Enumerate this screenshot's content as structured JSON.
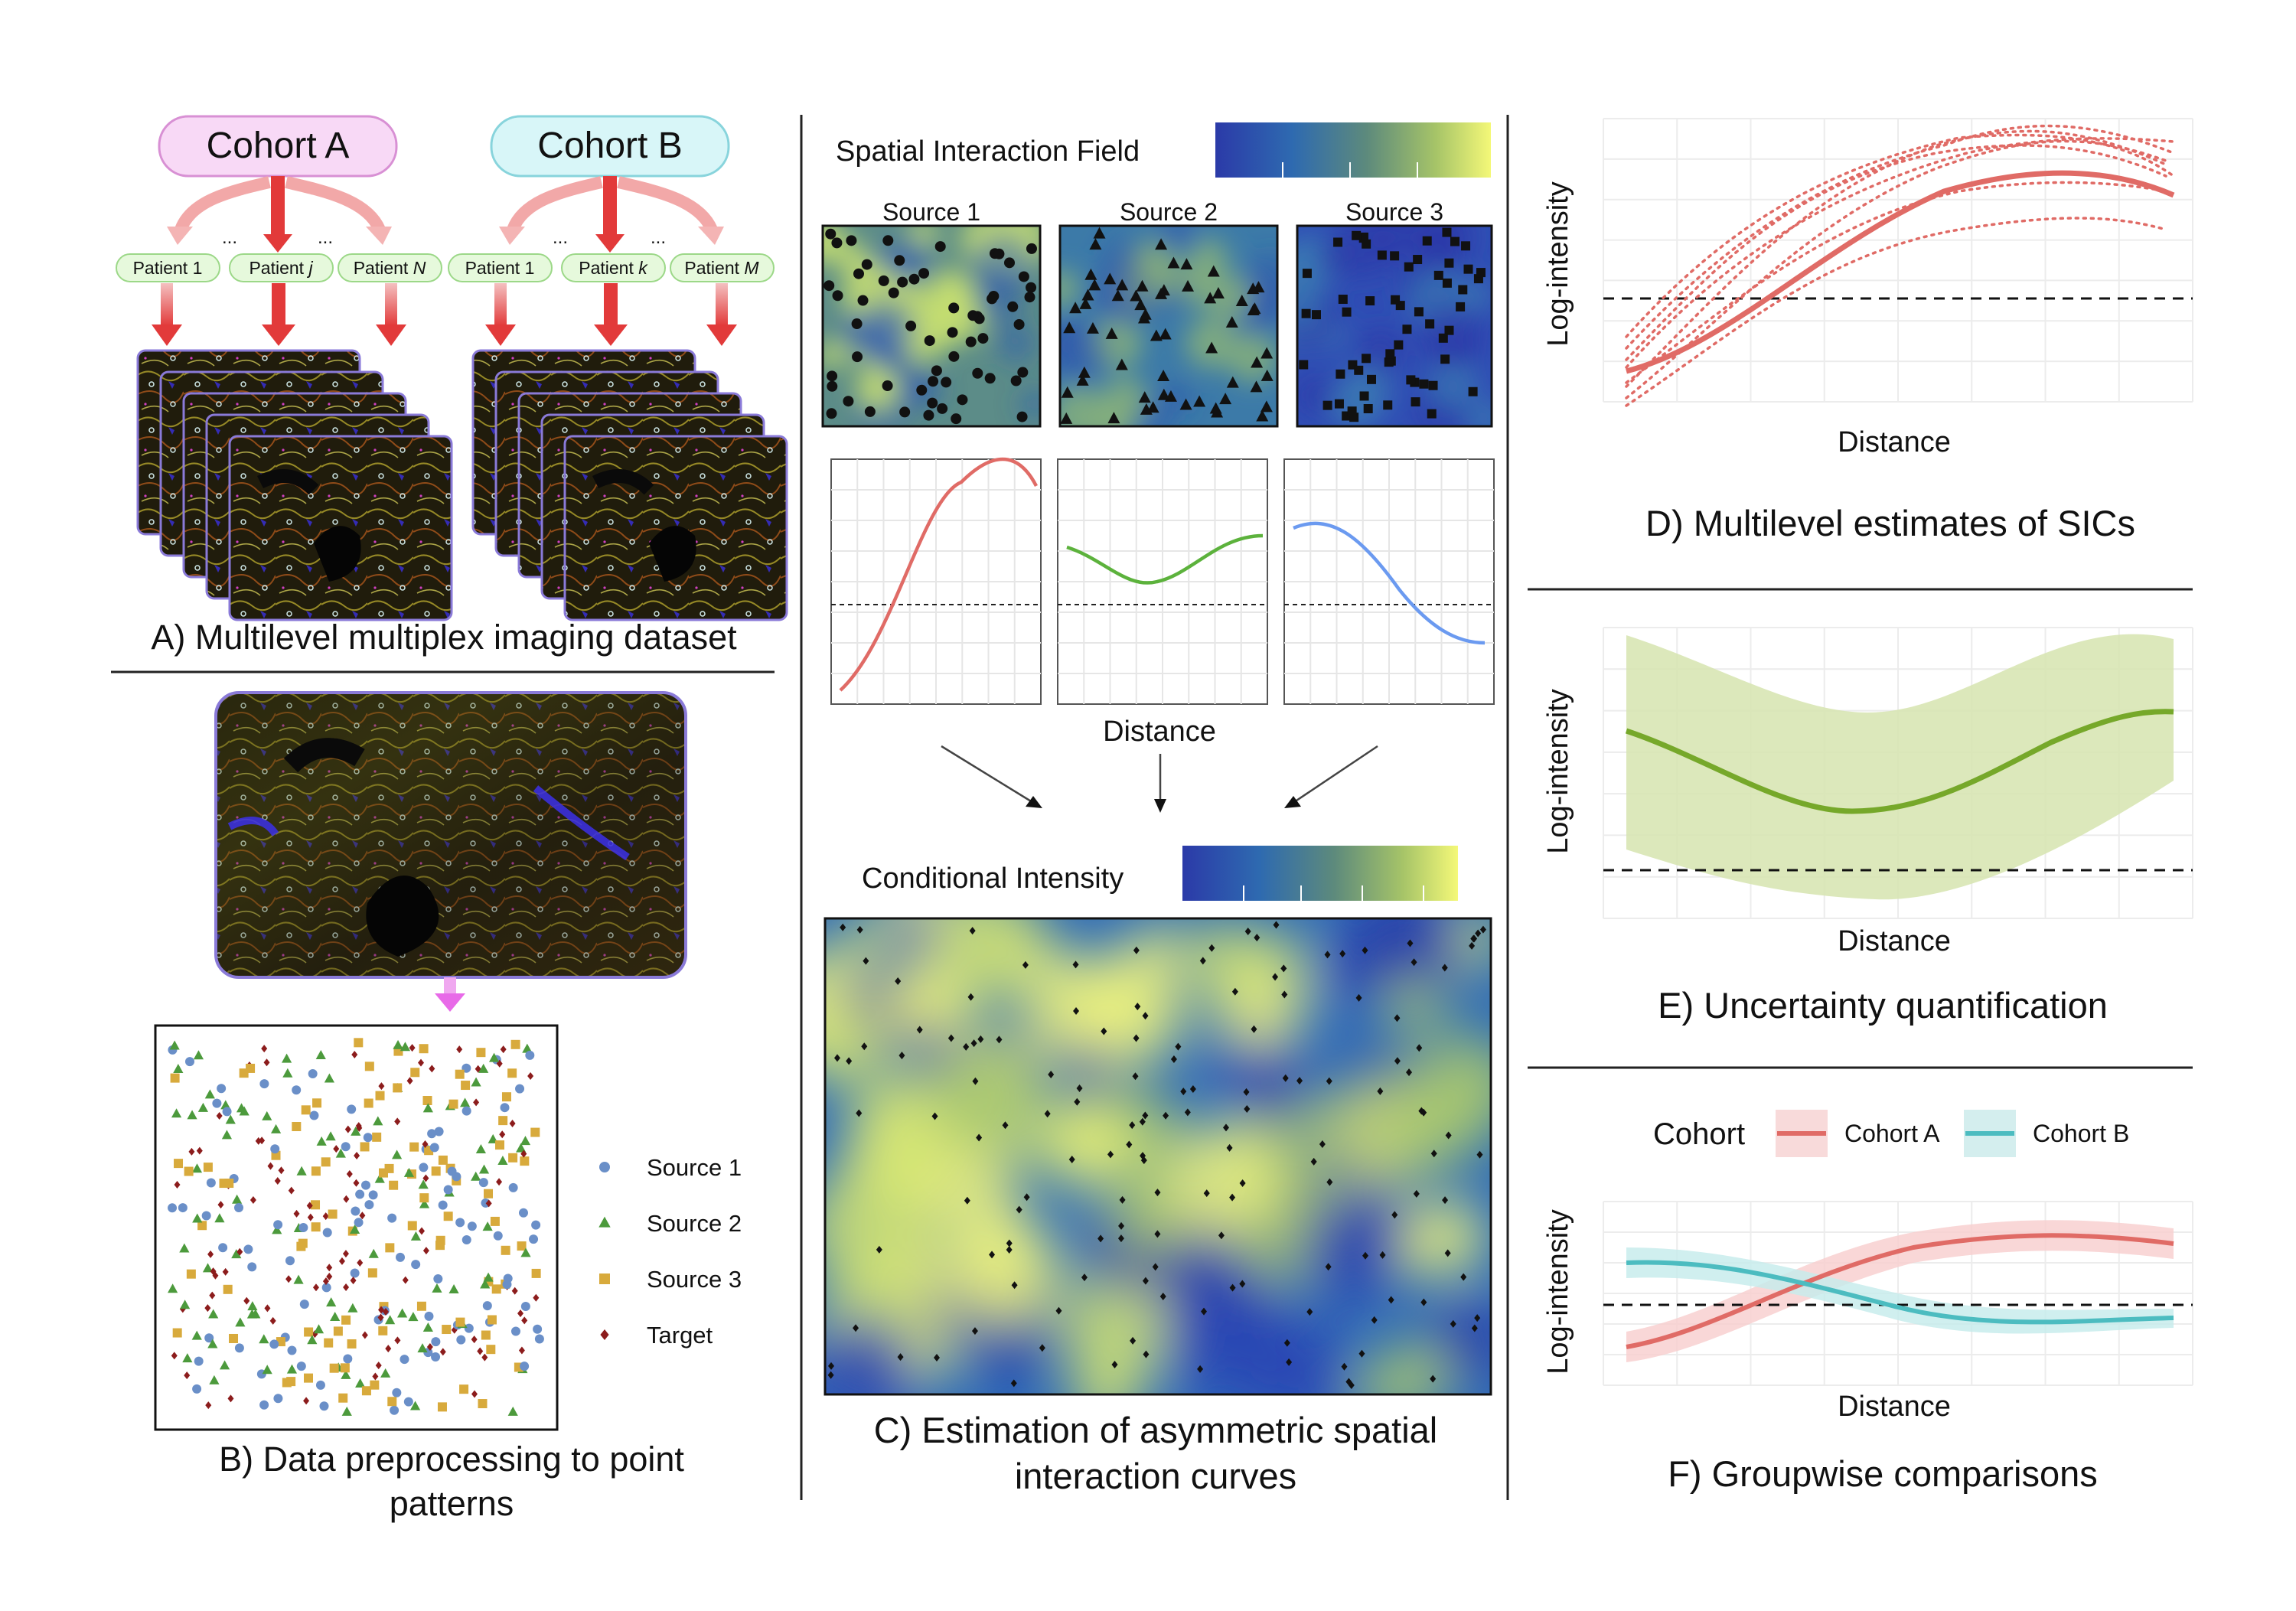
{
  "panel_a": {
    "caption": "A) Multilevel multiplex imaging dataset",
    "cohorts": [
      {
        "label": "Cohort A",
        "color": "#f8d9f6",
        "border": "#d890d4",
        "patients": [
          {
            "name": "Patient 1",
            "name_prefix": "Patient",
            "name_index": "1"
          },
          {
            "name": "Patient j",
            "name_prefix": "Patient",
            "name_index": "j"
          },
          {
            "name": "Patient N",
            "name_prefix": "Patient",
            "name_index": "N"
          }
        ]
      },
      {
        "label": "Cohort B",
        "color": "#d8f6f8",
        "border": "#88d4dc",
        "patients": [
          {
            "name": "Patient 1",
            "name_prefix": "Patient",
            "name_index": "1"
          },
          {
            "name": "Patient k",
            "name_prefix": "Patient",
            "name_index": "k"
          },
          {
            "name": "Patient M",
            "name_prefix": "Patient",
            "name_index": "M"
          }
        ]
      }
    ],
    "ellipsis": "..."
  },
  "panel_b": {
    "caption_line1": "B) Data preprocessing to point",
    "caption_line2": "patterns",
    "legend": [
      {
        "label": "Source 1",
        "shape": "circle",
        "color": "#6a8fc8"
      },
      {
        "label": "Source 2",
        "shape": "triangle",
        "color": "#4c9a3c"
      },
      {
        "label": "Source 3",
        "shape": "square",
        "color": "#d8aa3c"
      },
      {
        "label": "Target",
        "shape": "diamond",
        "color": "#8c1c1c"
      }
    ]
  },
  "panel_c": {
    "field_title": "Spatial Interaction Field",
    "sources": [
      {
        "label": "Source 1",
        "marker": "circle",
        "curve_color": "#e06b66"
      },
      {
        "label": "Source 2",
        "marker": "triangle",
        "curve_color": "#5cb23c"
      },
      {
        "label": "Source 3",
        "marker": "square",
        "curve_color": "#6b9af0"
      }
    ],
    "distance_label": "Distance",
    "conditional_title": "Conditional Intensity",
    "caption_line1": "C) Estimation of asymmetric spatial",
    "caption_line2": "interaction curves",
    "colormap": [
      "#2b3aa8",
      "#2e6ab0",
      "#5d8a7c",
      "#a6c468",
      "#f4f878"
    ]
  },
  "panel_d": {
    "ylabel": "Log-intensity",
    "xlabel": "Distance",
    "caption": "D) Multilevel estimates of SICs",
    "color": "#e06b66"
  },
  "panel_e": {
    "ylabel": "Log-intensity",
    "xlabel": "Distance",
    "caption": "E) Uncertainty quantification",
    "color": "#76a82a",
    "band_color": "#d8e6b4"
  },
  "panel_f": {
    "legend_title": "Cohort",
    "legend": [
      {
        "label": "Cohort A",
        "color": "#e06b66"
      },
      {
        "label": "Cohort B",
        "color": "#4cbcc0"
      }
    ],
    "ylabel": "Log-intensity",
    "xlabel": "Distance",
    "caption": "F) Groupwise comparisons"
  }
}
